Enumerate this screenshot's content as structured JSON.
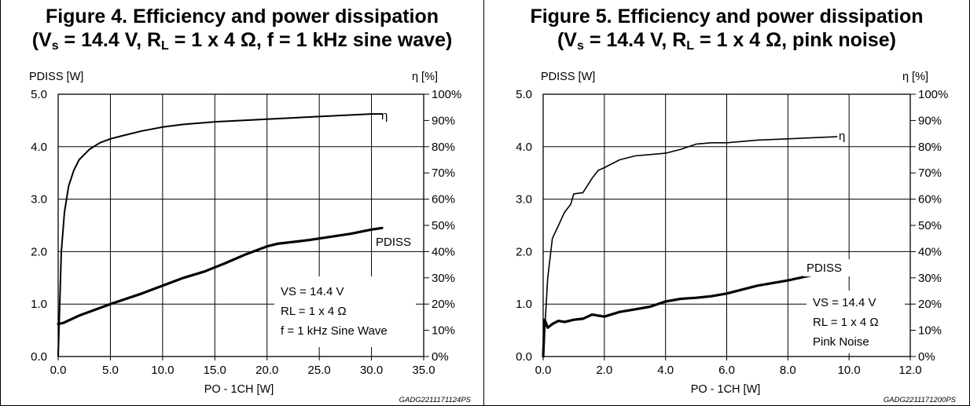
{
  "charts": [
    {
      "title_line1": "Figure 4. Efficiency and power dissipation",
      "title_line2_prefix": "(V",
      "title_line2_sub1": "s",
      "title_line2_mid": " = 14.4 V, R",
      "title_line2_sub2": "L",
      "title_line2_suffix": " = 1 x 4 Ω, f = 1 kHz sine wave)",
      "left_axis_label": "PDISS [W]",
      "right_axis_label": "η [%]",
      "x_axis_label": "PO - 1CH [W]",
      "curve_label_eta": "η",
      "curve_label_pdiss": "PDISS",
      "notes": [
        "VS = 14.4 V",
        "RL = 1 x 4 Ω",
        "f = 1 kHz Sine Wave"
      ],
      "code": "GADG2211171124PS",
      "x_ticks": [
        "0.0",
        "5.0",
        "10.0",
        "15.0",
        "20.0",
        "25.0",
        "30.0",
        "35.0"
      ],
      "y_ticks": [
        "0.0",
        "1.0",
        "2.0",
        "3.0",
        "4.0",
        "5.0"
      ],
      "y2_ticks": [
        "0%",
        "10%",
        "20%",
        "30%",
        "40%",
        "50%",
        "60%",
        "70%",
        "80%",
        "90%",
        "100%"
      ]
    },
    {
      "title_line1": "Figure 5. Efficiency and power dissipation",
      "title_line2_prefix": "(V",
      "title_line2_sub1": "s",
      "title_line2_mid": " = 14.4 V, R",
      "title_line2_sub2": "L",
      "title_line2_suffix": " = 1 x 4 Ω, pink noise)",
      "left_axis_label": "PDISS [W]",
      "right_axis_label": "η [%]",
      "x_axis_label": "PO - 1CH [W]",
      "curve_label_eta": "η",
      "curve_label_pdiss": "PDISS",
      "notes": [
        "VS = 14.4 V",
        "RL = 1 x 4 Ω",
        "Pink Noise"
      ],
      "code": "GADG2211171200PS",
      "x_ticks": [
        "0.0",
        "2.0",
        "4.0",
        "6.0",
        "8.0",
        "10.0",
        "12.0"
      ],
      "y_ticks": [
        "0.0",
        "1.0",
        "2.0",
        "3.0",
        "4.0",
        "5.0"
      ],
      "y2_ticks": [
        "0%",
        "10%",
        "20%",
        "30%",
        "40%",
        "50%",
        "60%",
        "70%",
        "80%",
        "90%",
        "100%"
      ]
    }
  ],
  "chart_data": [
    {
      "type": "line",
      "title": "Figure 4. Efficiency and power dissipation (Vs = 14.4 V, RL = 1 x 4 Ω, f = 1 kHz sine wave)",
      "xlabel": "PO - 1CH [W]",
      "ylabel": "PDISS [W]",
      "y2label": "η [%]",
      "xlim": [
        0,
        35
      ],
      "ylim": [
        0,
        5
      ],
      "y2lim": [
        0,
        100
      ],
      "grid": true,
      "series": [
        {
          "name": "η",
          "axis": "right",
          "x": [
            0,
            0.3,
            0.6,
            1,
            1.5,
            2,
            3,
            4,
            5,
            6,
            8,
            10,
            12,
            15,
            20,
            25,
            30,
            31
          ],
          "y": [
            0,
            40,
            55,
            65,
            71,
            75,
            79,
            81.5,
            83,
            84,
            86,
            87.5,
            88.5,
            89.5,
            90.5,
            91.5,
            92.5,
            92.5
          ]
        },
        {
          "name": "PDISS",
          "axis": "left",
          "x": [
            0,
            0.5,
            2,
            5,
            8,
            10,
            12,
            14,
            16,
            18,
            20,
            21,
            24,
            26,
            28,
            30,
            31
          ],
          "y": [
            0.62,
            0.64,
            0.78,
            1.0,
            1.2,
            1.35,
            1.5,
            1.62,
            1.78,
            1.95,
            2.1,
            2.15,
            2.22,
            2.28,
            2.34,
            2.42,
            2.45
          ]
        }
      ]
    },
    {
      "type": "line",
      "title": "Figure 5. Efficiency and power dissipation (Vs = 14.4 V, RL = 1 x 4 Ω, pink noise)",
      "xlabel": "PO - 1CH [W]",
      "ylabel": "PDISS [W]",
      "y2label": "η [%]",
      "xlim": [
        0,
        12
      ],
      "ylim": [
        0,
        5
      ],
      "y2lim": [
        0,
        100
      ],
      "grid": true,
      "series": [
        {
          "name": "η",
          "axis": "right",
          "x": [
            0,
            0.15,
            0.3,
            0.5,
            0.7,
            0.9,
            1.0,
            1.3,
            1.6,
            1.8,
            2.0,
            2.5,
            3.0,
            3.5,
            4.0,
            4.5,
            5.0,
            5.5,
            6.0,
            7.0,
            8.0,
            9.0,
            9.6
          ],
          "y": [
            0,
            30,
            45,
            50,
            55,
            58,
            62,
            62.5,
            68,
            71,
            72,
            75,
            76.5,
            77,
            77.5,
            79,
            81,
            81.5,
            81.5,
            82.5,
            83,
            83.5,
            83.8
          ]
        },
        {
          "name": "PDISS",
          "axis": "left",
          "x": [
            0,
            0.05,
            0.15,
            0.3,
            0.5,
            0.7,
            1.0,
            1.3,
            1.6,
            2.0,
            2.5,
            3.0,
            3.5,
            4.0,
            4.5,
            5.0,
            5.5,
            6.0,
            7.0,
            8.0,
            9.0,
            9.6
          ],
          "y": [
            0,
            0.7,
            0.55,
            0.62,
            0.68,
            0.66,
            0.7,
            0.72,
            0.8,
            0.76,
            0.85,
            0.9,
            0.95,
            1.05,
            1.1,
            1.12,
            1.15,
            1.2,
            1.35,
            1.45,
            1.58,
            1.65
          ]
        }
      ]
    }
  ]
}
